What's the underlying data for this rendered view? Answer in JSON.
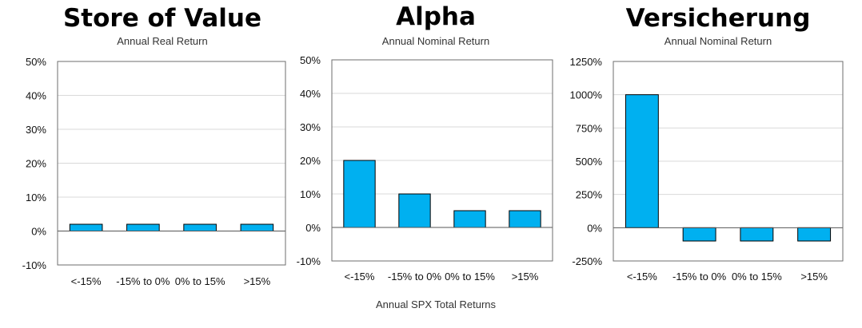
{
  "colors": {
    "bar": "#00B0F0"
  },
  "shared_xlabel": "Annual SPX Total Returns",
  "chart_data": [
    {
      "type": "bar",
      "title": "Store of Value",
      "subtitle": "Annual Real Return",
      "categories": [
        "<-15%",
        "-15% to 0%",
        "0% to 15%",
        ">15%"
      ],
      "values": [
        2,
        2,
        2,
        2
      ],
      "ylim": [
        -10,
        50
      ],
      "yticks": [
        -10,
        0,
        10,
        20,
        30,
        40,
        50
      ],
      "ytick_labels": [
        "-10%",
        "0%",
        "10%",
        "20%",
        "30%",
        "40%",
        "50%"
      ],
      "grid": true
    },
    {
      "type": "bar",
      "title": "Alpha",
      "subtitle": "Annual Nominal Return",
      "categories": [
        "<-15%",
        "-15% to 0%",
        "0% to 15%",
        ">15%"
      ],
      "values": [
        20,
        10,
        5,
        5
      ],
      "ylim": [
        -10,
        50
      ],
      "yticks": [
        -10,
        0,
        10,
        20,
        30,
        40,
        50
      ],
      "ytick_labels": [
        "-10%",
        "0%",
        "10%",
        "20%",
        "30%",
        "40%",
        "50%"
      ],
      "grid": true
    },
    {
      "type": "bar",
      "title": "Versicherung",
      "subtitle": "Annual Nominal Return",
      "categories": [
        "<-15%",
        "-15% to 0%",
        "0% to 15%",
        ">15%"
      ],
      "values": [
        1000,
        -100,
        -100,
        -100
      ],
      "ylim": [
        -250,
        1250
      ],
      "yticks": [
        -250,
        0,
        250,
        500,
        750,
        1000,
        1250
      ],
      "ytick_labels": [
        "-250%",
        "0%",
        "250%",
        "500%",
        "750%",
        "1000%",
        "1250%"
      ],
      "grid": true
    }
  ]
}
